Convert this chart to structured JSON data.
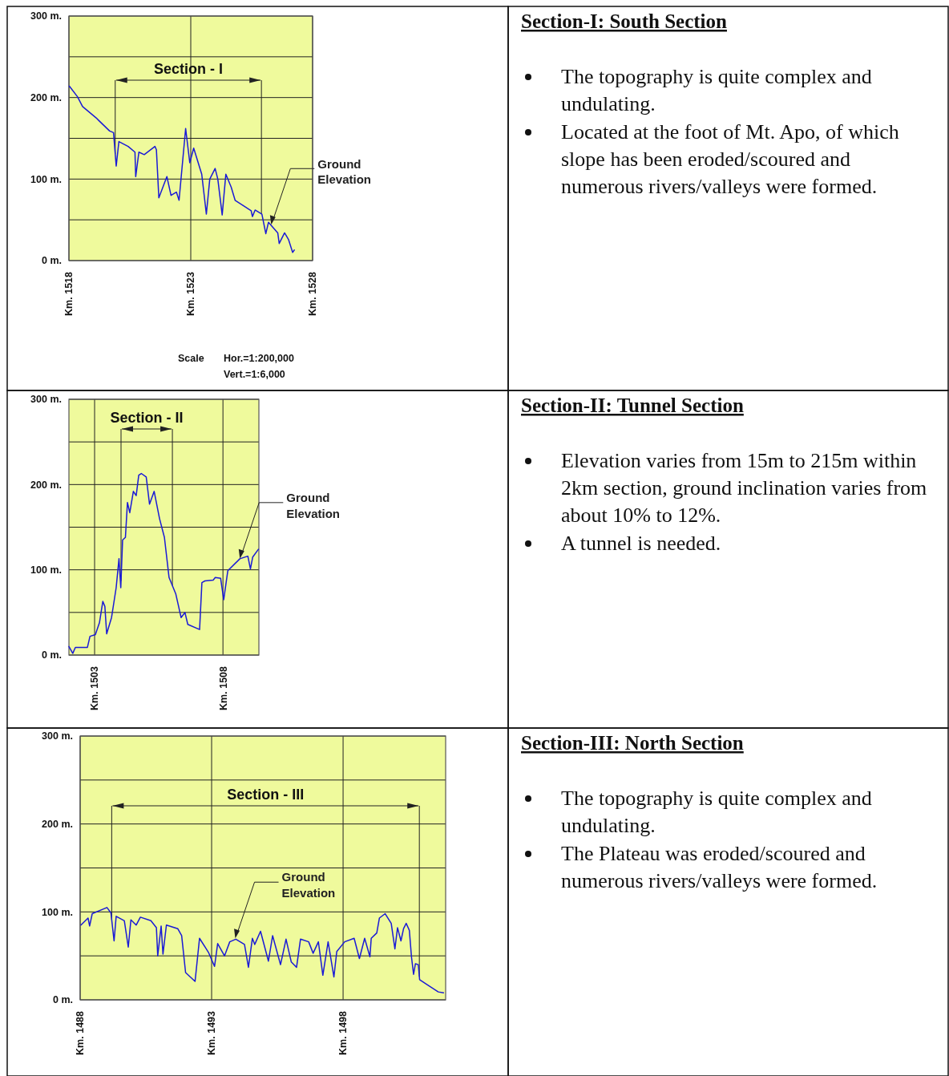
{
  "chart_data": [
    {
      "type": "line",
      "color": "#1a1ad6",
      "grid": true,
      "xlim": [
        1518,
        1528
      ],
      "ylim": [
        0,
        300
      ],
      "xticks": [
        {
          "value": 1518,
          "label": "Km. 1518"
        },
        {
          "value": 1523,
          "label": "Km. 1523"
        },
        {
          "value": 1528,
          "label": "Km. 1528"
        }
      ],
      "yticks": [
        {
          "value": 0,
          "label": "0 m."
        },
        {
          "value": 50,
          "label": null
        },
        {
          "value": 100,
          "label": "100 m."
        },
        {
          "value": 150,
          "label": null
        },
        {
          "value": 200,
          "label": "200 m."
        },
        {
          "value": 250,
          "label": null
        },
        {
          "value": 300,
          "label": "300 m."
        }
      ],
      "x": [
        1518.02,
        1518.35,
        1518.56,
        1519.12,
        1519.22,
        1519.67,
        1519.83,
        1519.94,
        1520.05,
        1520.43,
        1520.71,
        1520.74,
        1520.87,
        1521.09,
        1521.53,
        1521.59,
        1521.69,
        1522.02,
        1522.19,
        1522.41,
        1522.52,
        1522.79,
        1522.96,
        1523.12,
        1523.45,
        1523.64,
        1523.78,
        1524.0,
        1524.11,
        1524.29,
        1524.44,
        1524.66,
        1524.82,
        1525.48,
        1525.53,
        1525.64,
        1525.92,
        1526.08,
        1526.19,
        1526.57,
        1526.63,
        1526.85,
        1527.01,
        1527.18,
        1527.25
      ],
      "values": [
        214,
        201,
        189,
        175,
        172,
        159,
        157,
        116,
        146,
        140,
        133,
        103,
        133,
        130,
        140,
        136,
        77,
        103,
        80,
        84,
        74,
        162,
        120,
        138,
        106,
        57,
        100,
        113,
        100,
        56,
        106,
        90,
        74,
        61,
        54,
        62,
        57,
        33,
        47,
        34,
        21,
        34,
        26,
        10,
        13
      ],
      "ref_lines": [
        {
          "axis": "x",
          "value": 1519.9,
          "label": "Section - I"
        },
        {
          "axis": "x",
          "value": 1525.9,
          "label": null
        }
      ],
      "annotations": [
        "Scale",
        "Hor.=1:200,000",
        "Vert.=1:6,000",
        {
          "text": "Ground Elevation",
          "x": 1526.3,
          "y": 44
        }
      ]
    },
    {
      "type": "other",
      "title": "Section-I: South Section",
      "annotations": [
        "The topography is quite complex and undulating.",
        "Located at the foot of Mt. Apo, of which slope has been eroded/scoured and numerous rivers/valleys were formed."
      ]
    },
    {
      "type": "line",
      "color": "#1a1ad6",
      "grid": true,
      "xlim": [
        1502,
        1509.4
      ],
      "ylim": [
        0,
        300
      ],
      "xticks": [
        {
          "value": 1503,
          "label": "Km. 1503"
        },
        {
          "value": 1508,
          "label": "Km. 1508"
        }
      ],
      "yticks": [
        {
          "value": 0,
          "label": "0 m."
        },
        {
          "value": 50,
          "label": null
        },
        {
          "value": 100,
          "label": "100 m."
        },
        {
          "value": 150,
          "label": null
        },
        {
          "value": 200,
          "label": "200 m."
        },
        {
          "value": 250,
          "label": null
        },
        {
          "value": 300,
          "label": "300 m."
        }
      ],
      "x": [
        1502.0,
        1502.15,
        1502.25,
        1502.72,
        1502.82,
        1503.03,
        1503.19,
        1503.32,
        1503.4,
        1503.47,
        1503.66,
        1503.84,
        1503.95,
        1504.02,
        1504.09,
        1504.2,
        1504.28,
        1504.37,
        1504.51,
        1504.62,
        1504.72,
        1504.82,
        1505.01,
        1505.14,
        1505.32,
        1505.53,
        1505.72,
        1505.9,
        1506.16,
        1506.37,
        1506.52,
        1506.63,
        1507.09,
        1507.18,
        1507.3,
        1507.62,
        1507.7,
        1507.91,
        1508.03,
        1508.19,
        1508.66,
        1508.97,
        1509.07,
        1509.16,
        1509.38
      ],
      "values": [
        10,
        2,
        9,
        9,
        22,
        24,
        38,
        63,
        57,
        25,
        44,
        79,
        113,
        79,
        135,
        138,
        179,
        167,
        192,
        187,
        211,
        213,
        209,
        177,
        192,
        160,
        138,
        91,
        72,
        44,
        50,
        36,
        30,
        85,
        87,
        88,
        91,
        90,
        65,
        99,
        113,
        116,
        101,
        115,
        124
      ],
      "ref_lines": [
        {
          "axis": "x",
          "value": 1504.03,
          "label": "Section - II"
        },
        {
          "axis": "x",
          "value": 1506.03,
          "label": null
        }
      ],
      "annotations": [
        {
          "text": "Ground Elevation",
          "x": 1508.66,
          "y": 113
        }
      ]
    },
    {
      "type": "other",
      "title": "Section-II: Tunnel Section",
      "annotations": [
        "Elevation varies from 15m to 215m within 2km section, ground inclination varies from about 10% to 12%.",
        "A tunnel is needed."
      ]
    },
    {
      "type": "line",
      "color": "#1a1ad6",
      "grid": true,
      "xlim": [
        1488,
        1501.9
      ],
      "ylim": [
        0,
        300
      ],
      "xticks": [
        {
          "value": 1488,
          "label": "Km. 1488"
        },
        {
          "value": 1493,
          "label": "Km. 1493"
        },
        {
          "value": 1498,
          "label": "Km. 1498"
        }
      ],
      "yticks": [
        {
          "value": 0,
          "label": "0 m."
        },
        {
          "value": 50,
          "label": null
        },
        {
          "value": 100,
          "label": "100 m."
        },
        {
          "value": 150,
          "label": null
        },
        {
          "value": 200,
          "label": "200 m."
        },
        {
          "value": 250,
          "label": null
        },
        {
          "value": 300,
          "label": "300 m."
        }
      ],
      "x": [
        1488.03,
        1488.3,
        1488.36,
        1488.46,
        1489.02,
        1489.17,
        1489.29,
        1489.37,
        1489.68,
        1489.83,
        1489.93,
        1490.13,
        1490.29,
        1490.69,
        1490.9,
        1490.95,
        1491.08,
        1491.15,
        1491.28,
        1491.71,
        1491.86,
        1492.01,
        1492.37,
        1492.54,
        1492.88,
        1493.11,
        1493.23,
        1493.49,
        1493.69,
        1493.92,
        1494.25,
        1494.4,
        1494.55,
        1494.64,
        1494.86,
        1495.16,
        1495.32,
        1495.62,
        1495.83,
        1496.03,
        1496.23,
        1496.38,
        1496.69,
        1496.86,
        1497.06,
        1497.23,
        1497.43,
        1497.65,
        1497.76,
        1498.06,
        1498.42,
        1498.62,
        1498.82,
        1499.02,
        1499.07,
        1499.28,
        1499.38,
        1499.6,
        1499.83,
        1499.97,
        1500.07,
        1500.2,
        1500.3,
        1500.4,
        1500.52,
        1500.6,
        1500.68,
        1500.75,
        1500.86,
        1500.91,
        1501.21,
        1501.62,
        1501.82
      ],
      "values": [
        85,
        93,
        84,
        98,
        105,
        99,
        67,
        95,
        90,
        60,
        91,
        85,
        94,
        90,
        82,
        50,
        84,
        52,
        85,
        81,
        73,
        31,
        21,
        70,
        54,
        38,
        64,
        50,
        66,
        69,
        63,
        37,
        70,
        63,
        78,
        44,
        73,
        40,
        69,
        43,
        37,
        69,
        66,
        53,
        66,
        28,
        66,
        26,
        55,
        66,
        70,
        47,
        70,
        49,
        70,
        76,
        93,
        98,
        87,
        58,
        82,
        67,
        81,
        87,
        79,
        49,
        29,
        41,
        40,
        23,
        17,
        9,
        8
      ],
      "ref_lines": [
        {
          "axis": "x",
          "value": 1489.2,
          "label": "Section - III"
        },
        {
          "axis": "x",
          "value": 1500.9,
          "label": null
        }
      ],
      "annotations": [
        {
          "text": "Ground Elevation",
          "x": 1493.9,
          "y": 70
        }
      ]
    },
    {
      "type": "other",
      "title": "Section-III: North Section",
      "annotations": [
        "The topography is quite complex and undulating.",
        "The Plateau was eroded/scoured and numerous rivers/valleys were formed."
      ]
    }
  ]
}
